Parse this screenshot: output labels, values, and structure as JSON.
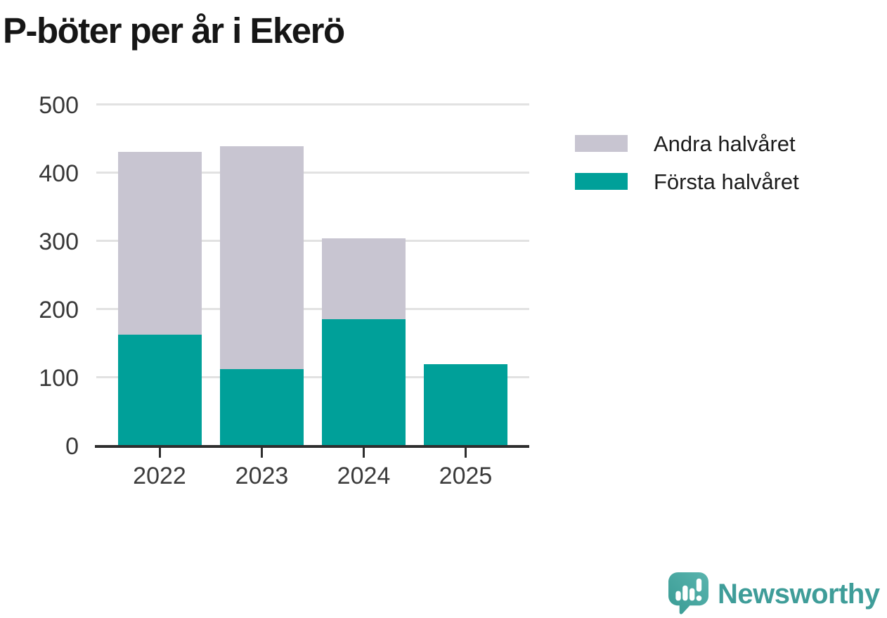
{
  "title": "P-böter per år i Ekerö",
  "chart_data": {
    "type": "bar",
    "stacked": true,
    "title": "P-böter per år i Ekerö",
    "categories": [
      "2022",
      "2023",
      "2024",
      "2025"
    ],
    "series": [
      {
        "name": "Första halvåret",
        "color": "#00a099",
        "values": [
          162,
          111,
          185,
          119
        ]
      },
      {
        "name": "Andra halvåret",
        "color": "#c8c5d1",
        "values": [
          268,
          327,
          118,
          0
        ]
      }
    ],
    "xlabel": "",
    "ylabel": "",
    "ylim": [
      0,
      500
    ],
    "yticks": [
      0,
      100,
      200,
      300,
      400,
      500
    ],
    "grid": true,
    "legend_position": "top-right"
  },
  "legend": {
    "items": [
      {
        "label": "Andra halvåret",
        "color": "#c8c5d1"
      },
      {
        "label": "Första halvåret",
        "color": "#00a099"
      }
    ]
  },
  "branding": {
    "logo_text": "Newsworthy",
    "logo_icon": "newsworthy-speech-bubble-bar-chart-icon",
    "brand_color": "#3f9d99"
  }
}
